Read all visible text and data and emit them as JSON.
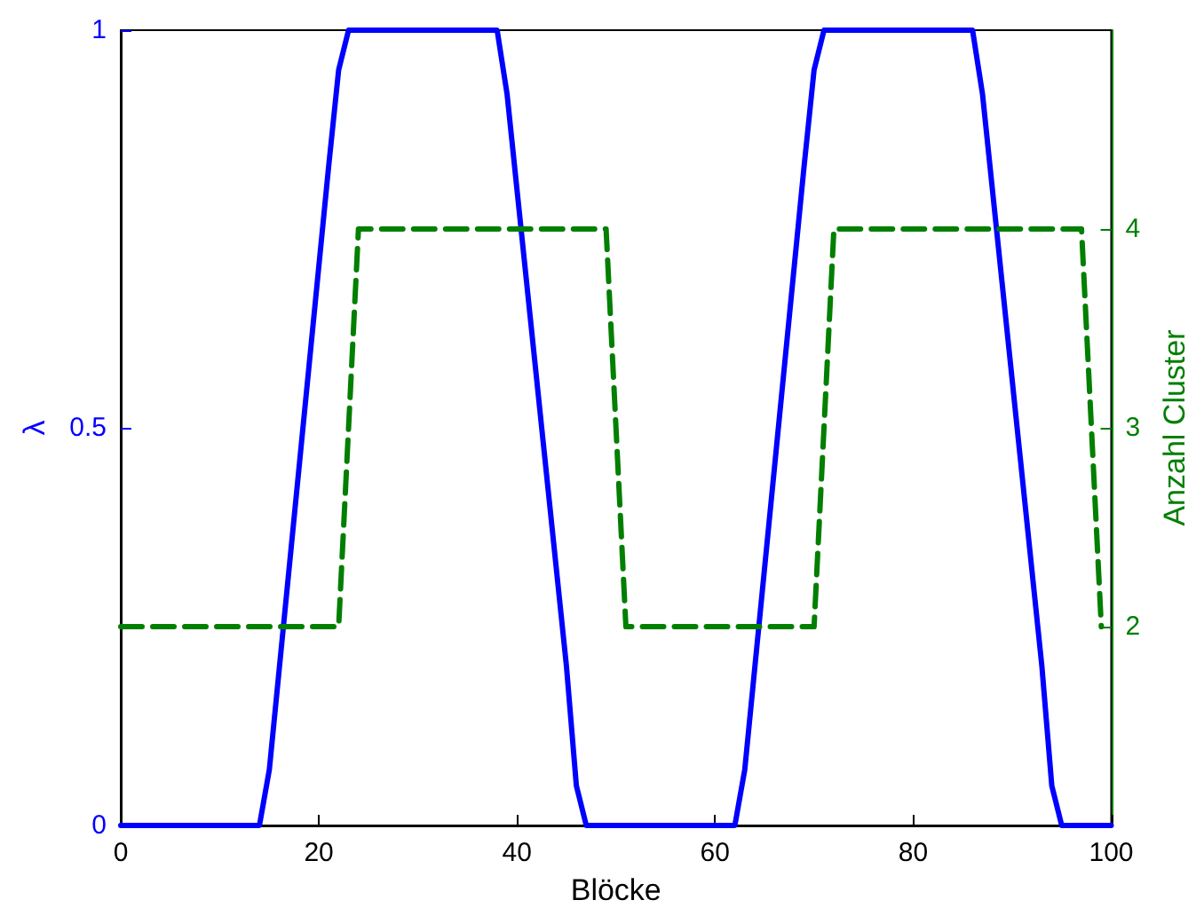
{
  "chart_data": {
    "type": "line",
    "xlabel": "Blöcke",
    "ylabel": "λ",
    "y2label": "Anzahl Cluster",
    "xlim": [
      0,
      100
    ],
    "xticks": [
      0,
      20,
      40,
      60,
      80,
      100
    ],
    "ylim": [
      0,
      1
    ],
    "yticks": [
      0,
      0.5,
      1
    ],
    "y2lim": [
      1,
      5
    ],
    "y2ticks": [
      2,
      3,
      4
    ],
    "grid": false,
    "marker": "none",
    "series": [
      {
        "color": "#0000ff",
        "line_style": "solid",
        "x": [
          0,
          14,
          15,
          21,
          22,
          23,
          38,
          39,
          45,
          46,
          47,
          62,
          63,
          69,
          70,
          71,
          86,
          87,
          93,
          94,
          95,
          100
        ],
        "values": [
          0,
          0,
          0.07,
          0.83,
          0.95,
          1,
          1,
          0.92,
          0.2,
          0.05,
          0,
          0,
          0.07,
          0.83,
          0.95,
          1,
          1,
          0.92,
          0.2,
          0.05,
          0,
          0
        ]
      },
      {
        "color": "#007f00",
        "line_style": "dashed",
        "axis": "y2",
        "x": [
          0,
          22,
          24,
          49,
          51,
          70,
          72,
          97,
          99
        ],
        "values": [
          2,
          2,
          4,
          4,
          2,
          2,
          4,
          4,
          2
        ]
      }
    ]
  }
}
